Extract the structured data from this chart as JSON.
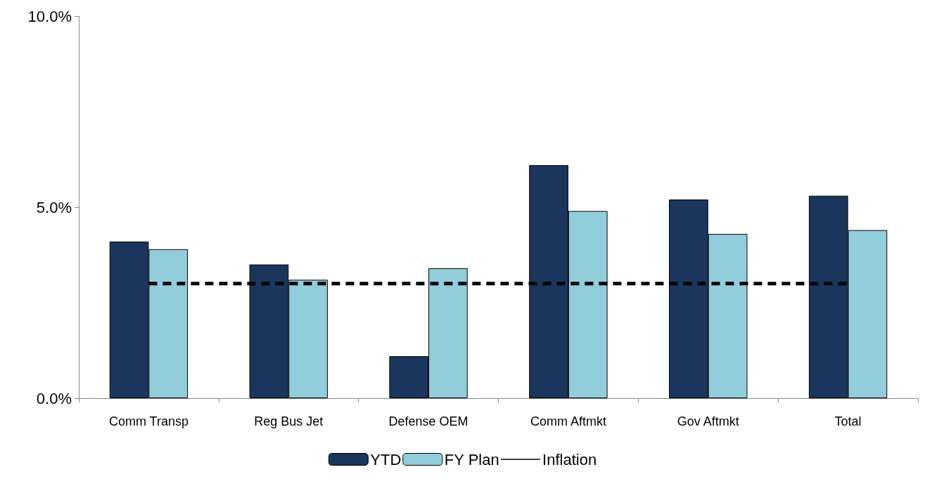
{
  "chart_data": {
    "type": "bar",
    "categories": [
      "Comm Transp",
      "Reg Bus Jet",
      "Defense OEM",
      "Comm Aftmkt",
      "Gov Aftmkt",
      "Total"
    ],
    "series": [
      {
        "name": "YTD",
        "color": "#1b365d",
        "values": [
          4.1,
          3.5,
          1.1,
          6.1,
          5.2,
          5.3
        ]
      },
      {
        "name": "FY Plan",
        "color": "#92cddc",
        "values": [
          3.9,
          3.1,
          3.4,
          4.9,
          4.3,
          4.4
        ]
      },
      {
        "name": "Inflation",
        "type": "line",
        "color": "#000000",
        "line_style": "dashed",
        "marker": "none",
        "values": [
          3.0,
          3.0,
          3.0,
          3.0,
          3.0,
          3.0
        ]
      }
    ],
    "ylim": [
      0,
      10
    ],
    "yticks": [
      {
        "value": 0,
        "label": "0.0%"
      },
      {
        "value": 5,
        "label": "5.0%"
      },
      {
        "value": 10,
        "label": "10.0%"
      }
    ],
    "grid": false,
    "legend": "bottom"
  }
}
